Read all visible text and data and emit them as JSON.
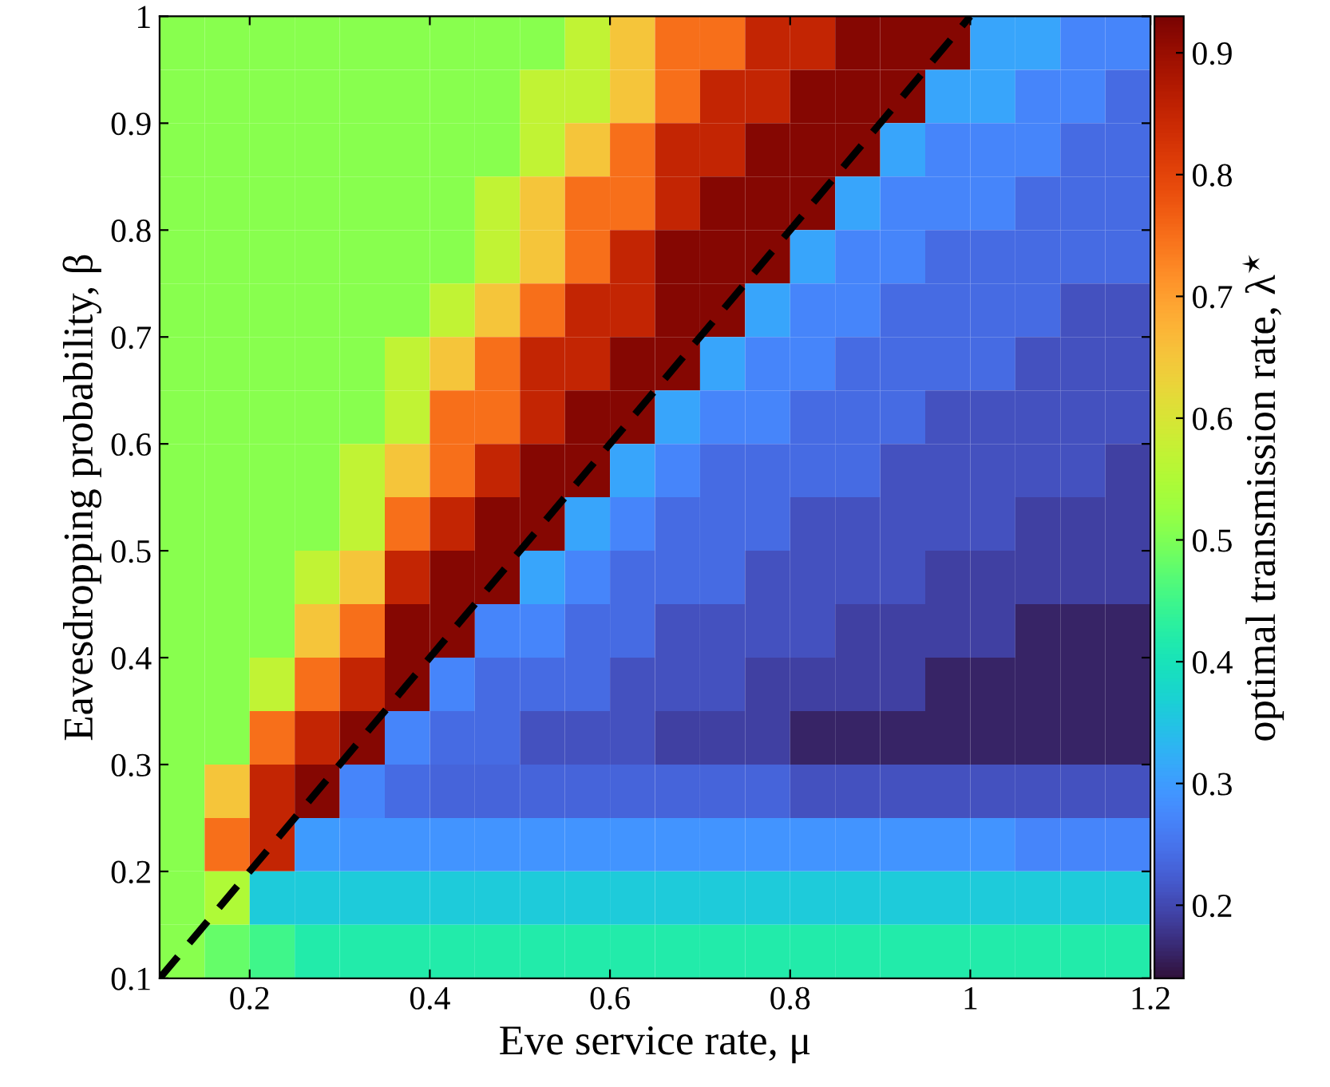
{
  "chart_data": {
    "type": "heatmap",
    "xlabel": "Eve service rate, μ",
    "ylabel": "Eavesdropping probability, β",
    "clabel": "optimal transmission rate, λ$^{⋆}$",
    "x": [
      0.125,
      0.175,
      0.225,
      0.275,
      0.325,
      0.375,
      0.425,
      0.475,
      0.525,
      0.575,
      0.625,
      0.675,
      0.725,
      0.775,
      0.825,
      0.875,
      0.925,
      0.975,
      1.025,
      1.075,
      1.125,
      1.175
    ],
    "y": [
      0.975,
      0.925,
      0.875,
      0.825,
      0.775,
      0.725,
      0.675,
      0.625,
      0.575,
      0.525,
      0.475,
      0.425,
      0.375,
      0.325,
      0.275,
      0.225,
      0.175,
      0.125
    ],
    "cells": [
      [
        0.51,
        0.51,
        0.51,
        0.51,
        0.51,
        0.51,
        0.51,
        0.51,
        0.51,
        0.57,
        0.65,
        0.75,
        0.75,
        0.85,
        0.85,
        0.92,
        0.92,
        0.92,
        0.31,
        0.31,
        0.27,
        0.27
      ],
      [
        0.51,
        0.51,
        0.51,
        0.51,
        0.51,
        0.51,
        0.51,
        0.51,
        0.57,
        0.57,
        0.65,
        0.75,
        0.85,
        0.85,
        0.92,
        0.92,
        0.92,
        0.31,
        0.31,
        0.27,
        0.27,
        0.24
      ],
      [
        0.51,
        0.51,
        0.51,
        0.51,
        0.51,
        0.51,
        0.51,
        0.51,
        0.57,
        0.65,
        0.75,
        0.85,
        0.85,
        0.92,
        0.92,
        0.92,
        0.31,
        0.27,
        0.27,
        0.27,
        0.24,
        0.24
      ],
      [
        0.51,
        0.51,
        0.51,
        0.51,
        0.51,
        0.51,
        0.51,
        0.57,
        0.65,
        0.75,
        0.75,
        0.85,
        0.92,
        0.92,
        0.92,
        0.31,
        0.27,
        0.27,
        0.27,
        0.24,
        0.24,
        0.24
      ],
      [
        0.51,
        0.51,
        0.51,
        0.51,
        0.51,
        0.51,
        0.51,
        0.57,
        0.65,
        0.75,
        0.85,
        0.92,
        0.92,
        0.92,
        0.31,
        0.27,
        0.27,
        0.24,
        0.24,
        0.24,
        0.24,
        0.24
      ],
      [
        0.51,
        0.51,
        0.51,
        0.51,
        0.51,
        0.51,
        0.57,
        0.65,
        0.75,
        0.85,
        0.85,
        0.92,
        0.92,
        0.31,
        0.27,
        0.27,
        0.24,
        0.24,
        0.24,
        0.24,
        0.21,
        0.21
      ],
      [
        0.51,
        0.51,
        0.51,
        0.51,
        0.51,
        0.57,
        0.65,
        0.75,
        0.85,
        0.85,
        0.92,
        0.92,
        0.31,
        0.27,
        0.27,
        0.24,
        0.24,
        0.24,
        0.24,
        0.21,
        0.21,
        0.21
      ],
      [
        0.51,
        0.51,
        0.51,
        0.51,
        0.51,
        0.57,
        0.75,
        0.75,
        0.85,
        0.92,
        0.92,
        0.31,
        0.27,
        0.27,
        0.24,
        0.24,
        0.24,
        0.21,
        0.21,
        0.21,
        0.21,
        0.21
      ],
      [
        0.51,
        0.51,
        0.51,
        0.51,
        0.57,
        0.65,
        0.75,
        0.85,
        0.92,
        0.92,
        0.31,
        0.27,
        0.24,
        0.24,
        0.24,
        0.24,
        0.21,
        0.21,
        0.21,
        0.21,
        0.21,
        0.19
      ],
      [
        0.51,
        0.51,
        0.51,
        0.51,
        0.57,
        0.75,
        0.85,
        0.92,
        0.92,
        0.31,
        0.27,
        0.24,
        0.24,
        0.24,
        0.21,
        0.21,
        0.21,
        0.21,
        0.21,
        0.19,
        0.19,
        0.19
      ],
      [
        0.51,
        0.51,
        0.51,
        0.57,
        0.65,
        0.85,
        0.92,
        0.92,
        0.31,
        0.27,
        0.24,
        0.24,
        0.24,
        0.21,
        0.21,
        0.21,
        0.21,
        0.19,
        0.19,
        0.19,
        0.19,
        0.19
      ],
      [
        0.51,
        0.51,
        0.51,
        0.65,
        0.75,
        0.92,
        0.92,
        0.27,
        0.27,
        0.24,
        0.24,
        0.21,
        0.21,
        0.21,
        0.21,
        0.19,
        0.19,
        0.19,
        0.19,
        0.16,
        0.16,
        0.16
      ],
      [
        0.51,
        0.51,
        0.57,
        0.75,
        0.85,
        0.92,
        0.27,
        0.24,
        0.24,
        0.24,
        0.21,
        0.21,
        0.21,
        0.19,
        0.19,
        0.19,
        0.19,
        0.16,
        0.16,
        0.16,
        0.16,
        0.16
      ],
      [
        0.51,
        0.51,
        0.75,
        0.85,
        0.92,
        0.27,
        0.24,
        0.24,
        0.21,
        0.21,
        0.21,
        0.19,
        0.19,
        0.19,
        0.16,
        0.16,
        0.16,
        0.16,
        0.16,
        0.16,
        0.16,
        0.16
      ],
      [
        0.51,
        0.65,
        0.85,
        0.92,
        0.27,
        0.24,
        0.23,
        0.23,
        0.23,
        0.23,
        0.23,
        0.23,
        0.23,
        0.23,
        0.21,
        0.21,
        0.21,
        0.21,
        0.21,
        0.21,
        0.21,
        0.21
      ],
      [
        0.51,
        0.75,
        0.85,
        0.3,
        0.29,
        0.29,
        0.29,
        0.29,
        0.29,
        0.29,
        0.29,
        0.29,
        0.29,
        0.29,
        0.29,
        0.29,
        0.29,
        0.29,
        0.29,
        0.27,
        0.27,
        0.27
      ],
      [
        0.51,
        0.55,
        0.36,
        0.36,
        0.36,
        0.36,
        0.36,
        0.36,
        0.36,
        0.36,
        0.36,
        0.36,
        0.36,
        0.36,
        0.36,
        0.36,
        0.36,
        0.36,
        0.36,
        0.36,
        0.36,
        0.36
      ],
      [
        0.51,
        0.48,
        0.45,
        0.42,
        0.42,
        0.42,
        0.42,
        0.42,
        0.42,
        0.42,
        0.42,
        0.42,
        0.42,
        0.42,
        0.42,
        0.42,
        0.42,
        0.42,
        0.42,
        0.42,
        0.42,
        0.42
      ]
    ],
    "series": [
      {
        "type": "line",
        "x": [
          0.1,
          1.0
        ],
        "values": [
          0.1,
          1.0
        ],
        "color": "#000000",
        "line_style": "dashed"
      }
    ],
    "xlim": [
      0.1,
      1.2
    ],
    "ylim": [
      0.1,
      1.0
    ],
    "xticks": [
      0.2,
      0.4,
      0.6,
      0.8,
      1,
      1.2
    ],
    "yticks": [
      0.1,
      0.2,
      0.3,
      0.4,
      0.5,
      0.6,
      0.7,
      0.8,
      0.9,
      1
    ],
    "clim": [
      0.14,
      0.93
    ],
    "cticks": [
      0.2,
      0.3,
      0.4,
      0.5,
      0.6,
      0.7,
      0.8,
      0.9
    ],
    "grid": false
  }
}
